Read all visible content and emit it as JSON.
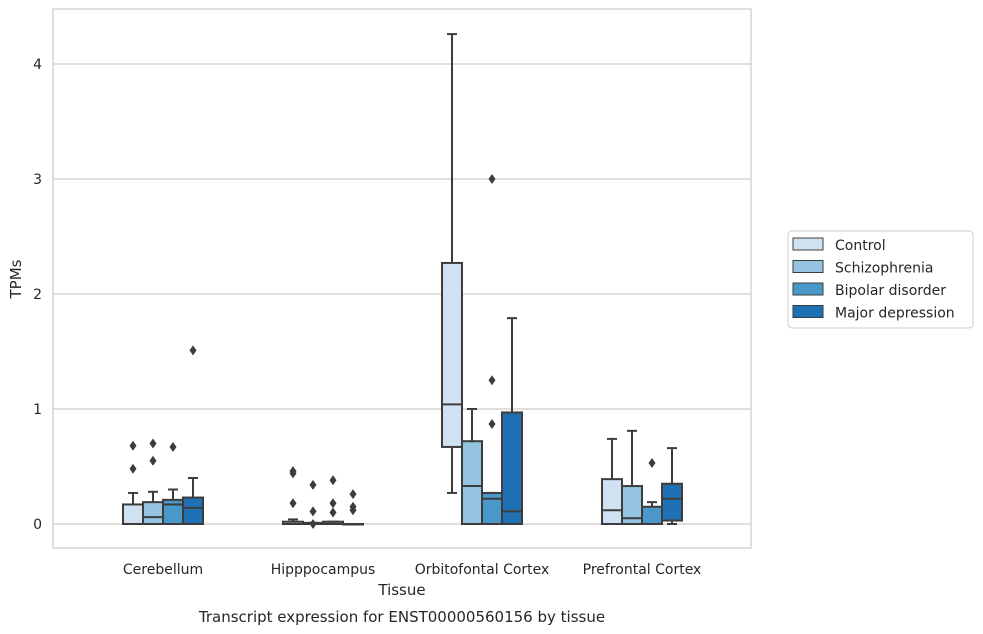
{
  "chart_data": {
    "type": "box",
    "categories": [
      "Cerebellum",
      "Hipppocampus",
      "Orbitofontal Cortex",
      "Prefrontal Cortex"
    ],
    "xlabel": "Tissue",
    "ylabel": "TPMs",
    "caption": "Transcript expression for ENST00000560156 by tissue",
    "ylim": [
      -0.2,
      4.5
    ],
    "yticks": [
      0,
      1,
      2,
      3,
      4
    ],
    "grid": "horizontal",
    "legend_position": "right",
    "series": [
      {
        "name": "Control",
        "color": "#d0e1f2",
        "boxes": [
          {
            "whislo": 0.0,
            "q1": 0.0,
            "med": 0.0,
            "q3": 0.17,
            "whishi": 0.27,
            "fliers": [
              0.48,
              0.68
            ]
          },
          {
            "whislo": 0.0,
            "q1": 0.0,
            "med": 0.0,
            "q3": 0.02,
            "whishi": 0.04,
            "fliers": [
              0.18,
              0.44,
              0.46
            ]
          },
          {
            "whislo": 0.27,
            "q1": 0.67,
            "med": 1.04,
            "q3": 2.27,
            "whishi": 4.26,
            "fliers": []
          },
          {
            "whislo": 0.0,
            "q1": 0.0,
            "med": 0.12,
            "q3": 0.39,
            "whishi": 0.74,
            "fliers": []
          }
        ]
      },
      {
        "name": "Schizophrenia",
        "color": "#94c4df",
        "boxes": [
          {
            "whislo": 0.0,
            "q1": 0.0,
            "med": 0.06,
            "q3": 0.19,
            "whishi": 0.28,
            "fliers": [
              0.55,
              0.7
            ]
          },
          {
            "whislo": 0.0,
            "q1": 0.0,
            "med": 0.0,
            "q3": 0.01,
            "whishi": 0.01,
            "fliers": [
              0.0,
              0.11,
              0.34
            ]
          },
          {
            "whislo": 0.0,
            "q1": 0.0,
            "med": 0.33,
            "q3": 0.72,
            "whishi": 1.0,
            "fliers": []
          },
          {
            "whislo": 0.0,
            "q1": 0.0,
            "med": 0.05,
            "q3": 0.33,
            "whishi": 0.81,
            "fliers": []
          }
        ]
      },
      {
        "name": "Bipolar disorder",
        "color": "#4a98c9",
        "boxes": [
          {
            "whislo": 0.0,
            "q1": 0.0,
            "med": 0.17,
            "q3": 0.21,
            "whishi": 0.3,
            "fliers": [
              0.67
            ]
          },
          {
            "whislo": 0.0,
            "q1": 0.0,
            "med": 0.0,
            "q3": 0.02,
            "whishi": 0.02,
            "fliers": [
              0.1,
              0.18,
              0.38
            ]
          },
          {
            "whislo": 0.0,
            "q1": 0.0,
            "med": 0.22,
            "q3": 0.27,
            "whishi": 0.27,
            "fliers": [
              0.87,
              1.25,
              3.0
            ]
          },
          {
            "whislo": 0.0,
            "q1": 0.0,
            "med": 0.0,
            "q3": 0.15,
            "whishi": 0.19,
            "fliers": [
              0.53
            ]
          }
        ]
      },
      {
        "name": "Major depression",
        "color": "#2070b4",
        "boxes": [
          {
            "whislo": 0.0,
            "q1": 0.0,
            "med": 0.14,
            "q3": 0.23,
            "whishi": 0.4,
            "fliers": [
              1.51
            ]
          },
          {
            "whislo": 0.0,
            "q1": 0.0,
            "med": 0.0,
            "q3": 0.0,
            "whishi": 0.0,
            "fliers": [
              0.12,
              0.15,
              0.26
            ]
          },
          {
            "whislo": 0.0,
            "q1": 0.0,
            "med": 0.11,
            "q3": 0.97,
            "whishi": 1.79,
            "fliers": []
          },
          {
            "whislo": 0.0,
            "q1": 0.03,
            "med": 0.22,
            "q3": 0.35,
            "whishi": 0.66,
            "fliers": []
          }
        ]
      }
    ]
  }
}
